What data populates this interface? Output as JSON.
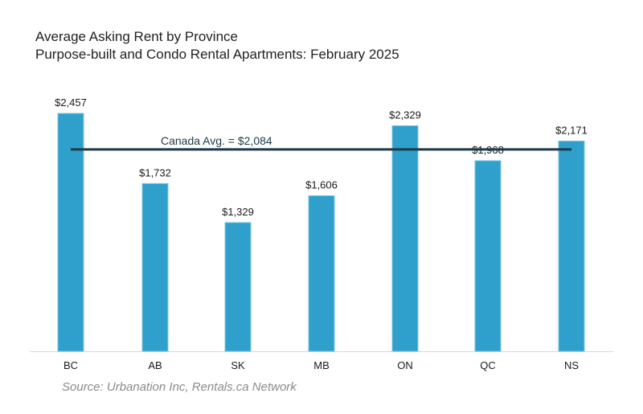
{
  "title": "Average Asking Rent by Province",
  "subtitle": "Purpose-built and Condo Rental Apartments: February 2025",
  "source": "Source: Urbanation Inc, Rentals.ca Network",
  "colors": {
    "bar": "#2f9fcb",
    "bar_edge": "#7cc7e3",
    "avg_line": "#1d3a47",
    "axis": "#d8d8d8",
    "avg_label": "#1d3a47"
  },
  "chart_data": {
    "type": "bar",
    "title": "Average Asking Rent by Province",
    "subtitle": "Purpose-built and Condo Rental Apartments: February 2025",
    "categories": [
      "BC",
      "AB",
      "SK",
      "MB",
      "ON",
      "QC",
      "NS"
    ],
    "values": [
      2457,
      1732,
      1329,
      1606,
      2329,
      1968,
      2171
    ],
    "data_labels": [
      "$2,457",
      "$1,732",
      "$1,329",
      "$1,606",
      "$2,329",
      "$1,968",
      "$2,171"
    ],
    "reference_line": {
      "label": "Canada Avg. = $2,084",
      "value": 2084
    },
    "xlabel": "",
    "ylabel": "",
    "ylim": [
      0,
      2500
    ],
    "grid": false,
    "legend": "none"
  }
}
